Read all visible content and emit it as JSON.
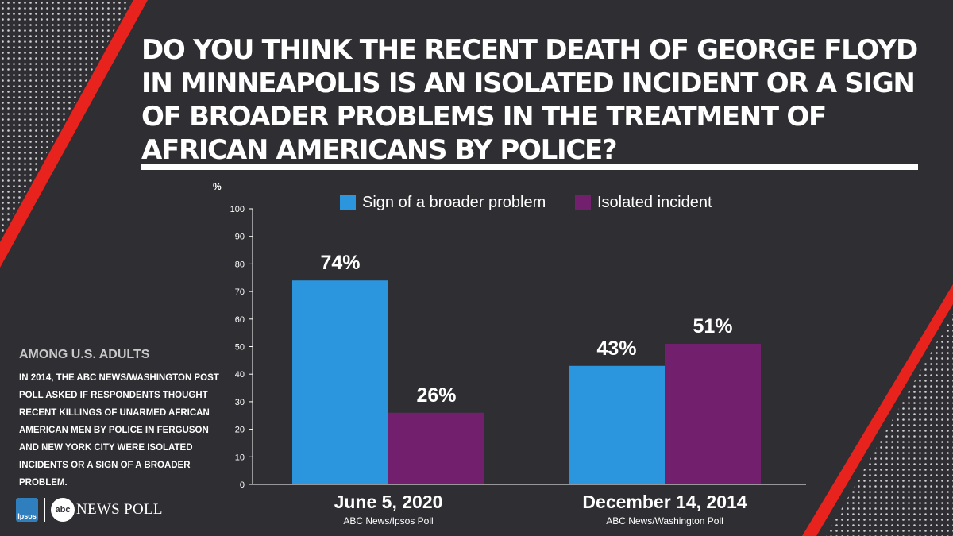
{
  "title": "DO YOU THINK THE RECENT DEATH OF GEORGE FLOYD IN MINNEAPOLIS IS AN ISOLATED INCIDENT OR A SIGN OF BROADER PROBLEMS IN THE TREATMENT OF AFRICAN AMERICANS BY POLICE?",
  "side": {
    "heading": "AMONG U.S. ADULTS",
    "note": "IN 2014, THE ABC NEWS/WASHINGTON POST POLL ASKED IF RESPONDENTS THOUGHT RECENT KILLINGS OF UNARMED AFRICAN AMERICAN MEN BY POLICE IN FERGUSON AND NEW YORK CITY WERE ISOLATED INCIDENTS OR A SIGN OF A BROADER PROBLEM."
  },
  "logos": {
    "ipsos": "Ipsos",
    "abc": "abc",
    "news_poll": "NEWS POLL"
  },
  "colors": {
    "background": "#2f2f33",
    "accent_red": "#e8231e",
    "series_blue": "#2b96dd",
    "series_purple": "#72206e"
  },
  "chart_data": {
    "type": "bar",
    "title": "",
    "ylabel": "%",
    "xlabel": "",
    "ylim": [
      0,
      100
    ],
    "yticks": [
      0,
      10,
      20,
      30,
      40,
      50,
      60,
      70,
      80,
      90,
      100
    ],
    "categories": [
      "June 5, 2020",
      "December 14, 2014"
    ],
    "category_sources": [
      "ABC News/Ipsos Poll",
      "ABC News/Washington Poll"
    ],
    "legend_position": "top",
    "series": [
      {
        "name": "Sign of a broader problem",
        "color": "#2b96dd",
        "values": [
          74,
          43
        ],
        "labels": [
          "74%",
          "43%"
        ]
      },
      {
        "name": "Isolated incident",
        "color": "#72206e",
        "values": [
          26,
          51
        ],
        "labels": [
          "26%",
          "51%"
        ]
      }
    ]
  }
}
